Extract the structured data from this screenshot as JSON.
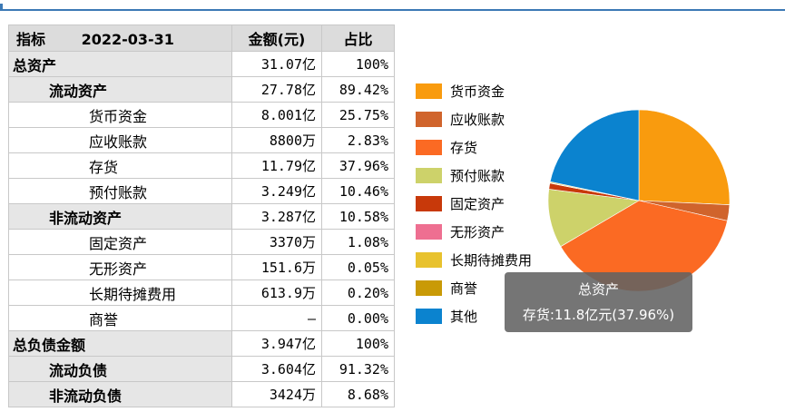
{
  "table": {
    "header": {
      "name": "指标",
      "date": "2022-03-31",
      "amount": "金额(元)",
      "pct": "占比"
    },
    "rows": [
      {
        "name": "总资产",
        "value": "31.07亿",
        "pct": "100%",
        "level": 0,
        "grey": true
      },
      {
        "name": "流动资产",
        "value": "27.78亿",
        "pct": "89.42%",
        "level": 1,
        "grey": true
      },
      {
        "name": "货币资金",
        "value": "8.001亿",
        "pct": "25.75%",
        "level": 2,
        "grey": false
      },
      {
        "name": "应收账款",
        "value": "8800万",
        "pct": "2.83%",
        "level": 2,
        "grey": false
      },
      {
        "name": "存货",
        "value": "11.79亿",
        "pct": "37.96%",
        "level": 2,
        "grey": false
      },
      {
        "name": "预付账款",
        "value": "3.249亿",
        "pct": "10.46%",
        "level": 2,
        "grey": false
      },
      {
        "name": "非流动资产",
        "value": "3.287亿",
        "pct": "10.58%",
        "level": 1,
        "grey": true
      },
      {
        "name": "固定资产",
        "value": "3370万",
        "pct": "1.08%",
        "level": 2,
        "grey": false
      },
      {
        "name": "无形资产",
        "value": "151.6万",
        "pct": "0.05%",
        "level": 2,
        "grey": false
      },
      {
        "name": "长期待摊费用",
        "value": "613.9万",
        "pct": "0.20%",
        "level": 2,
        "grey": false
      },
      {
        "name": "商誉",
        "value": "—",
        "pct": "0.00%",
        "level": 2,
        "grey": false
      },
      {
        "name": "总负债金额",
        "value": "3.947亿",
        "pct": "100%",
        "level": 0,
        "grey": true
      },
      {
        "name": "流动负债",
        "value": "3.604亿",
        "pct": "91.32%",
        "level": 1,
        "grey": true
      },
      {
        "name": "非流动负债",
        "value": "3424万",
        "pct": "8.68%",
        "level": 1,
        "grey": true
      }
    ]
  },
  "legend": [
    {
      "label": "货币资金",
      "color": "#f99b0e"
    },
    {
      "label": "应收账款",
      "color": "#d0642c"
    },
    {
      "label": "存货",
      "color": "#fb6a23"
    },
    {
      "label": "预付账款",
      "color": "#cdd26a"
    },
    {
      "label": "固定资产",
      "color": "#c8390a"
    },
    {
      "label": "无形资产",
      "color": "#ee6f91"
    },
    {
      "label": "长期待摊费用",
      "color": "#e8c22e"
    },
    {
      "label": "商誉",
      "color": "#c99a06"
    },
    {
      "label": "其他",
      "color": "#0b83cf"
    }
  ],
  "chart_data": {
    "type": "pie",
    "slices": [
      {
        "label": "货币资金",
        "value": 25.75,
        "color": "#f99b0e"
      },
      {
        "label": "应收账款",
        "value": 2.83,
        "color": "#d0642c"
      },
      {
        "label": "存货",
        "value": 37.96,
        "color": "#fb6a23"
      },
      {
        "label": "预付账款",
        "value": 10.46,
        "color": "#cdd26a"
      },
      {
        "label": "固定资产",
        "value": 1.08,
        "color": "#c8390a"
      },
      {
        "label": "无形资产",
        "value": 0.05,
        "color": "#ee6f91"
      },
      {
        "label": "长期待摊费用",
        "value": 0.2,
        "color": "#e8c22e"
      },
      {
        "label": "商誉",
        "value": 0.0,
        "color": "#c99a06"
      },
      {
        "label": "其他",
        "value": 21.67,
        "color": "#0b83cf"
      }
    ]
  },
  "tooltip": {
    "title": "总资产",
    "detail": "存货:11.8亿元(37.96%)"
  }
}
